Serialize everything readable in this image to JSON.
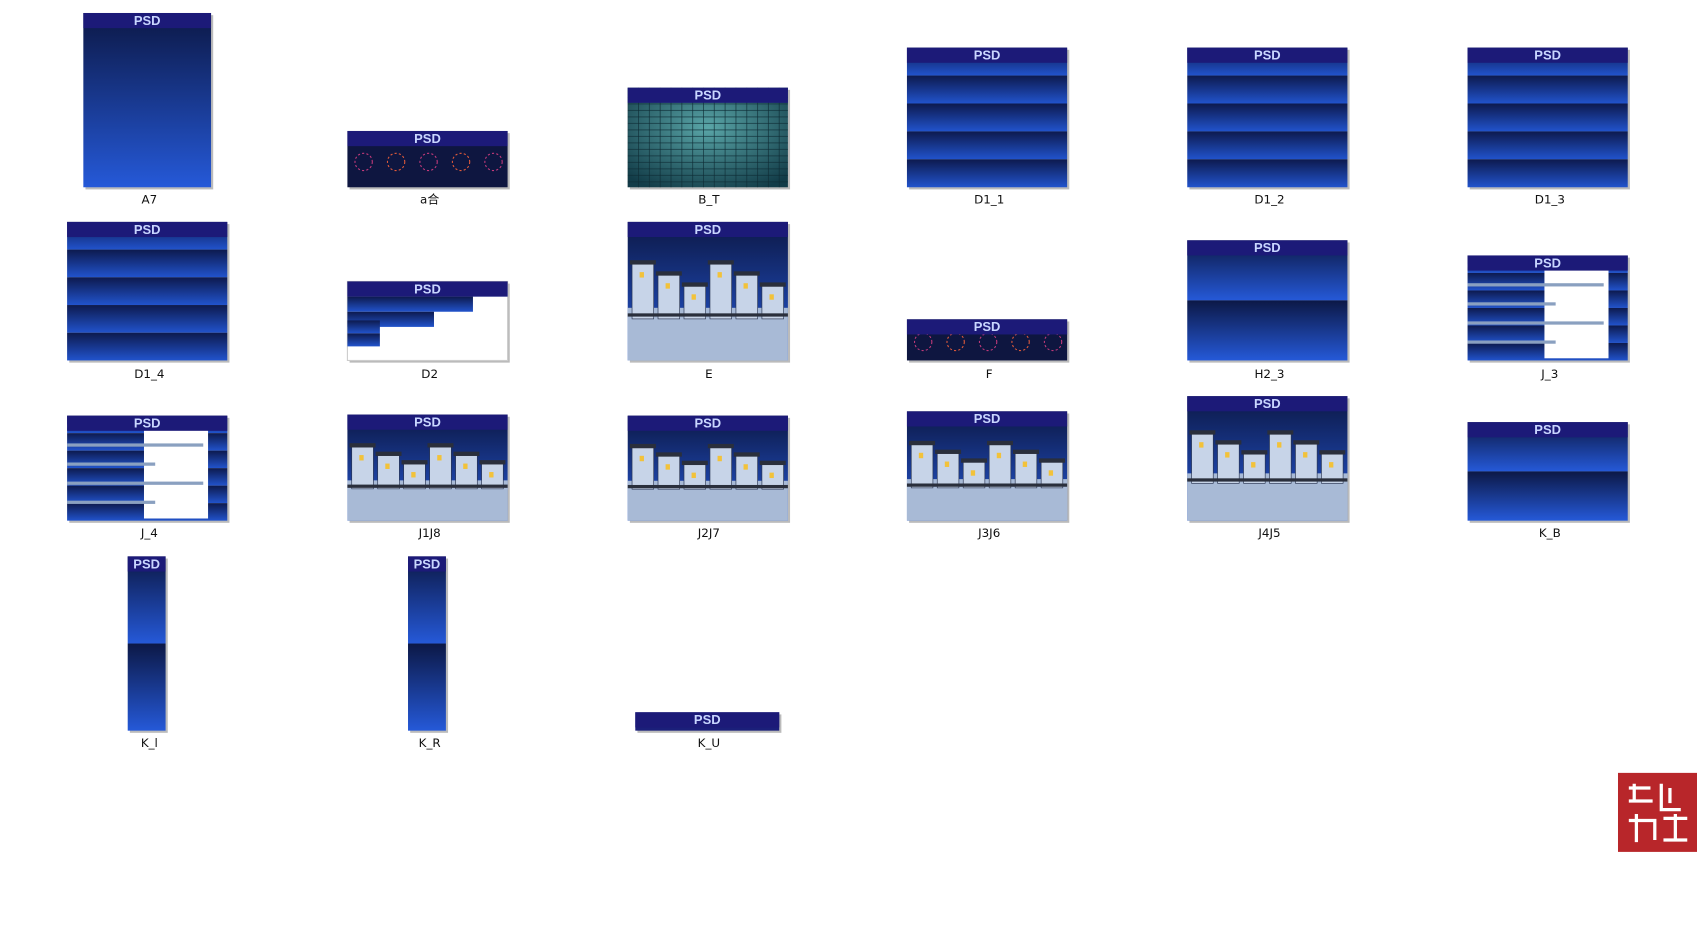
{
  "badge": "PSD",
  "files": [
    {
      "name": "A7"
    },
    {
      "name": "a合"
    },
    {
      "name": "B_T"
    },
    {
      "name": "D1_1"
    },
    {
      "name": "D1_2"
    },
    {
      "name": "D1_3"
    },
    {
      "name": "D1_4"
    },
    {
      "name": "D2"
    },
    {
      "name": "E"
    },
    {
      "name": "F"
    },
    {
      "name": "H2_3"
    },
    {
      "name": "J_3"
    },
    {
      "name": "J_4"
    },
    {
      "name": "J1J8"
    },
    {
      "name": "J2J7"
    },
    {
      "name": "J3J6"
    },
    {
      "name": "J4J5"
    },
    {
      "name": "K_B"
    },
    {
      "name": "K_l"
    },
    {
      "name": "K_R"
    },
    {
      "name": "K_U"
    }
  ]
}
